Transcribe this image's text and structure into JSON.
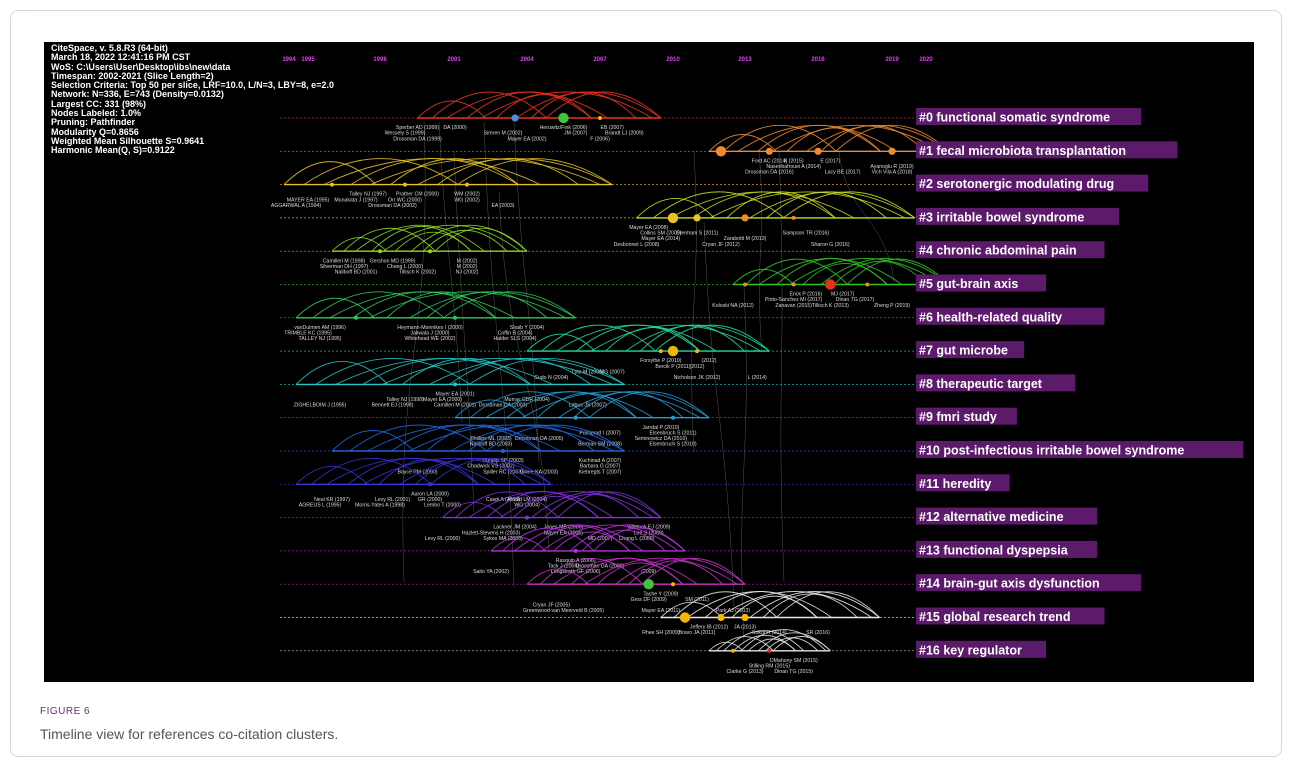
{
  "info_lines": [
    "CiteSpace, v. 5.8.R3 (64-bit)",
    "March 18, 2022 12:41:16 PM CST",
    "WoS: C:\\Users\\User\\Desktop\\ibs\\new\\data",
    "Timespan: 2002-2021 (Slice Length=2)",
    "Selection Criteria: Top 50 per slice, LRF=10.0, L/N=3, LBY=8, e=2.0",
    "Network: N=336, E=743 (Density=0.0132)",
    "Largest CC: 331 (98%)",
    "Nodes Labeled: 1.0%",
    "Pruning: Pathfinder",
    "Modularity Q=0.8656",
    "Weighted Mean Silhouette S=0.9641",
    "Harmonic Mean(Q, S)=0.9122"
  ],
  "years": [
    {
      "label": "1994",
      "year": 1994
    },
    {
      "label": "1995",
      "year": 1995
    },
    {
      "label": "1998",
      "year": 1998
    },
    {
      "label": "2001",
      "year": 2001
    },
    {
      "label": "2004",
      "year": 2004
    },
    {
      "label": "2007",
      "year": 2007
    },
    {
      "label": "2010",
      "year": 2010
    },
    {
      "label": "2013",
      "year": 2013
    },
    {
      "label": "2016",
      "year": 2016
    },
    {
      "label": "2019",
      "year": 2019
    },
    {
      "label": "2020",
      "year": 2020
    }
  ],
  "clusters": [
    {
      "label": "#0 functional somatic syndrome",
      "color": "#e8321e",
      "span": [
        1999.5,
        2009.5
      ],
      "nodes": [
        [
          2003.5,
          "#4a90e2",
          1
        ],
        [
          2005.5,
          "#3ec43e",
          2
        ],
        [
          2007,
          "#f2b705",
          0
        ]
      ],
      "refs": [
        [
          "Sperber AD (1999)",
          1999.5,
          1
        ],
        [
          "DA (2000)",
          2001,
          1
        ],
        [
          "Heruwitz/Fink (2006)",
          2005.5,
          1
        ],
        [
          "EB (2007)",
          2007.5,
          1
        ],
        [
          "Wessely S (1999)",
          1999,
          2
        ],
        [
          "Simren M (2002)",
          2003,
          2
        ],
        [
          "JM (2007)",
          2006,
          2
        ],
        [
          "Brandt LJ (2009)",
          2008,
          2
        ],
        [
          "Drossman DA (1999)",
          1999.5,
          3
        ],
        [
          "Mayer EA (2002)",
          2004,
          3
        ],
        [
          "F (2006)",
          2007,
          3
        ]
      ]
    },
    {
      "label": "#1 fecal microbiota transplantation",
      "color": "#f08a2c",
      "span": [
        2011.5,
        2021.5
      ],
      "nodes": [
        [
          2012,
          "#f08a2c",
          2
        ],
        [
          2014,
          "#f08a2c",
          1
        ],
        [
          2016,
          "#f08a2c",
          1
        ],
        [
          2019,
          "#f08a2c",
          1
        ]
      ],
      "refs": [
        [
          "Ford AC (2014)",
          2014,
          1
        ],
        [
          "K (2015)",
          2015,
          1
        ],
        [
          "E (2017)",
          2016.5,
          1
        ],
        [
          "Naseribafrouei A (2014)",
          2015,
          2
        ],
        [
          "Ayanoglu R (2019)",
          2019,
          2
        ],
        [
          "Drossman DA (2016)",
          2014,
          3
        ],
        [
          "Lacy BE (2017)",
          2017,
          3
        ],
        [
          "Vich Vila A (2018)",
          2019,
          3
        ]
      ]
    },
    {
      "label": "#2 serotonergic modulating drug",
      "color": "#e8c21e",
      "span": [
        1994,
        2007.5
      ],
      "nodes": [
        [
          1996,
          "#e8c21e",
          0
        ],
        [
          1999,
          "#e8c21e",
          0
        ],
        [
          2001.5,
          "#e8c21e",
          0
        ]
      ],
      "refs": [
        [
          "Talley NJ (1997)",
          1997.5,
          1
        ],
        [
          "Prather CM (2000)",
          1999.5,
          1
        ],
        [
          "WM (2002)",
          2001.5,
          1
        ],
        [
          "MAYER EA (1995)",
          1995,
          2
        ],
        [
          "Munakata J (1997)",
          1997,
          2
        ],
        [
          "Orr WC (2000)",
          1999,
          2
        ],
        [
          "WG (2002)",
          2001.5,
          2
        ],
        [
          "AGGARWAL A (1994)",
          1994.5,
          3
        ],
        [
          "Drossman DA (2002)",
          1998.5,
          3
        ],
        [
          "EA (2003)",
          2003,
          3
        ]
      ]
    },
    {
      "label": "#3 irritable bowel syndrome",
      "color": "#c8dc1e",
      "span": [
        2008.5,
        2020
      ],
      "nodes": [
        [
          2010,
          "#e8c21e",
          2
        ],
        [
          2011,
          "#e8c21e",
          1
        ],
        [
          2013,
          "#f08a2c",
          1
        ],
        [
          2015,
          "#f08a2c",
          0
        ]
      ],
      "refs": [
        [
          "Mayer EA (2008)",
          2009,
          1
        ],
        [
          "Collins SM (2009)",
          2009.5,
          2
        ],
        [
          "Grenham S (2011)",
          2011,
          2
        ],
        [
          "Sampson TR (2016)",
          2015.5,
          2
        ],
        [
          "Mayer EA (2014)",
          2009.5,
          3
        ],
        [
          "Zarabotti M (2013)",
          2013,
          3
        ],
        [
          "Desbonnet L (2008)",
          2008.5,
          4
        ],
        [
          "Cryan JF (2012)",
          2012,
          4
        ],
        [
          "Sharon G (2016)",
          2016.5,
          4
        ]
      ]
    },
    {
      "label": "#4 chronic abdominal pain",
      "color": "#8cdc1e",
      "span": [
        1996,
        2004
      ],
      "nodes": [
        [
          1998,
          "#8cdc1e",
          0
        ],
        [
          2000,
          "#8cdc1e",
          0
        ]
      ],
      "refs": [
        [
          "Camilleri M (1998)",
          1996.5,
          1
        ],
        [
          "Gershon MD (1999)",
          1998.5,
          1
        ],
        [
          "M (2002)",
          2001.5,
          1
        ],
        [
          "Silverman DH (1997)",
          1996.5,
          2
        ],
        [
          "Chang L (2000)",
          1999,
          2
        ],
        [
          "M (2002)",
          2001.5,
          2
        ],
        [
          "Naliboff BD (2001)",
          1997,
          3
        ],
        [
          "Tillisch K (2002)",
          1999.5,
          3
        ],
        [
          "NJ (2002)",
          2001.5,
          3
        ]
      ]
    },
    {
      "label": "#5 gut-brain axis",
      "color": "#2cc41e",
      "span": [
        2012.5,
        2021.5
      ],
      "nodes": [
        [
          2013,
          "#f08a2c",
          0
        ],
        [
          2015,
          "#f08a2c",
          0
        ],
        [
          2016.5,
          "#e8321e",
          2
        ],
        [
          2018,
          "#f08a2c",
          0
        ]
      ],
      "refs": [
        [
          "Enck P (2016)",
          2015.5,
          1
        ],
        [
          "MJ (2017)",
          2017,
          1
        ],
        [
          "Pinto-Sanchez MI (2017)",
          2015,
          2
        ],
        [
          "Dinan TG (2017)",
          2017.5,
          2
        ],
        [
          "Koloski NA (2012)",
          2012.5,
          3
        ],
        [
          "Zanavan (2015)",
          2015,
          3
        ],
        [
          "Tillisch K (2013)",
          2016.5,
          3
        ],
        [
          "Zheng P (2019)",
          2019,
          3
        ]
      ]
    },
    {
      "label": "#6 health-related quality",
      "color": "#2ccc5a",
      "span": [
        1994.5,
        2006
      ],
      "nodes": [
        [
          1997,
          "#2ccc5a",
          0
        ],
        [
          2001,
          "#2ccc5a",
          0
        ]
      ],
      "refs": [
        [
          "vanDulmen AM (1996)",
          1995.5,
          1
        ],
        [
          "Heymann-Monnikes I (2000)",
          2000,
          1
        ],
        [
          "Shaib Y (2004)",
          2004,
          1
        ],
        [
          "TRIMBLE KC (1995)",
          1995,
          2
        ],
        [
          "Jailwala J (2000)",
          2000,
          2
        ],
        [
          "Coffin B (2004)",
          2003.5,
          2
        ],
        [
          "TALLEY NJ (1995)",
          1995.5,
          3
        ],
        [
          "Whitehead WE (2002)",
          2000,
          3
        ],
        [
          "Halder SLS (2004)",
          2003.5,
          3
        ]
      ]
    },
    {
      "label": "#7 gut microbe",
      "color": "#1edca0",
      "span": [
        2004,
        2014
      ],
      "nodes": [
        [
          2009.5,
          "#f2b705",
          0
        ],
        [
          2010,
          "#f2b705",
          2
        ],
        [
          2011,
          "#f2b705",
          0
        ]
      ],
      "refs": [
        [
          "Forsythe P (2010)",
          2009.5,
          1
        ],
        [
          "(2012)",
          2011.5,
          1
        ],
        [
          "Bercik P (2011)",
          2010,
          2
        ],
        [
          "(2012)",
          2011,
          2
        ],
        [
          "Lyte M (2006)",
          2006.5,
          3
        ],
        [
          "MG (2007)",
          2007.5,
          3
        ],
        [
          "Sudo N (2004)",
          2005,
          4
        ],
        [
          "Nicholson JK (2012)",
          2011,
          4
        ],
        [
          "L (2014)",
          2013.5,
          4
        ]
      ]
    },
    {
      "label": "#8 therapeutic target",
      "color": "#1ec8c8",
      "span": [
        1994.5,
        2008
      ],
      "nodes": [
        [
          2001,
          "#1ec8c8",
          0
        ]
      ],
      "refs": [
        [
          "Mayer EA (2001)",
          2001,
          1
        ],
        [
          "Talley NJ (1998)",
          1999,
          2
        ],
        [
          "Mayer EA (2000)",
          2000.5,
          2
        ],
        [
          "Murray CDR (2004)",
          2004,
          2
        ],
        [
          "ZIGHELBOIM J (1995)",
          1995.5,
          3
        ],
        [
          "Bennett EJ (1998)",
          1998.5,
          3
        ],
        [
          "Camilleri M (2001)",
          2001,
          3
        ],
        [
          "Drossman DA (2003)",
          2003,
          3
        ],
        [
          "Labus JS (2007)",
          2006.5,
          3
        ]
      ]
    },
    {
      "label": "#9 fmri study",
      "color": "#1ea0dc",
      "span": [
        2001,
        2011.5
      ],
      "nodes": [
        [
          2006,
          "#1ea0dc",
          0
        ],
        [
          2010,
          "#1ea0dc",
          0
        ]
      ],
      "refs": [
        [
          "Jarrdal P (2010)",
          2009.5,
          1
        ],
        [
          "Posserud I (2007)",
          2007,
          2
        ],
        [
          "Elsenbruch S (2011)",
          2010,
          2
        ],
        [
          "Phillips ML (2003)",
          2002.5,
          3
        ],
        [
          "Drossman DA (2005)",
          2004.5,
          3
        ],
        [
          "Seminowicz DA (2010)",
          2009.5,
          3
        ],
        [
          "Naliboff BD (2003)",
          2002.5,
          4
        ],
        [
          "Berman SM (2008)",
          2007,
          4
        ],
        [
          "Elsenbruch S (2010)",
          2010,
          4
        ]
      ]
    },
    {
      "label": "#10 post-infectious irritable bowel syndrome",
      "color": "#1e64dc",
      "span": [
        1996,
        2008
      ],
      "nodes": [
        [
          2003,
          "#1e64dc",
          0
        ]
      ],
      "refs": [
        [
          "Dunlop SP (2003)",
          2003,
          1
        ],
        [
          "Kuchinad A (2007)",
          2007,
          1
        ],
        [
          "Chadwick VS (2002)",
          2002.5,
          2
        ],
        [
          "Barbara G (2007)",
          2007,
          2
        ],
        [
          "Boyce PM (2000)",
          1999.5,
          3
        ],
        [
          "Spiller RC (2003)",
          2003,
          3
        ],
        [
          "Gwee KA (2003)",
          2004.5,
          3
        ],
        [
          "Kiebregts T (2007)",
          2007,
          3
        ]
      ]
    },
    {
      "label": "#11 heredity",
      "color": "#3c32dc",
      "span": [
        1994.5,
        2005
      ],
      "nodes": [
        [
          2000,
          "#3c32dc",
          0
        ]
      ],
      "refs": [
        [
          "Aaron LA (2000)",
          2000,
          1
        ],
        [
          "Caspi A (2003)",
          2003,
          2
        ],
        [
          "Arnold LM (2004)",
          2004,
          2
        ],
        [
          "Neal KR (1997)",
          1996,
          2
        ],
        [
          "Levy RL (2001)",
          1998.5,
          2
        ],
        [
          "GR (2000)",
          2000,
          2
        ],
        [
          "AGREUS L (1995)",
          1995.5,
          3
        ],
        [
          "Morris-Yates A (1998)",
          1998,
          3
        ],
        [
          "Lembo T (2000)",
          2000.5,
          3
        ],
        [
          "WG (2004)",
          2004,
          3
        ]
      ]
    },
    {
      "label": "#12 alternative medicine",
      "color": "#8232dc",
      "span": [
        2000.5,
        2009.5
      ],
      "nodes": [
        [
          2004,
          "#8232dc",
          0
        ]
      ],
      "refs": [
        [
          "Lackner JM (2004)",
          2003.5,
          1
        ],
        [
          "Jones MP (2006)",
          2005.5,
          1
        ],
        [
          "Videlock EJ (2009)",
          2009,
          1
        ],
        [
          "Hazlett-Stevens H (2003)",
          2002.5,
          2
        ],
        [
          "Mayer EA (2006)",
          2005.5,
          2
        ],
        [
          "Lee S (2009)",
          2009,
          2
        ],
        [
          "Levy RL (2000)",
          2000.5,
          3
        ],
        [
          "Sykes MA (2003)",
          2003,
          3
        ],
        [
          "MD (2007)",
          2007,
          3
        ],
        [
          "Chang L (2009)",
          2008.5,
          3
        ]
      ]
    },
    {
      "label": "#13 functional dyspepsia",
      "color": "#b432dc",
      "span": [
        2002.5,
        2010.5
      ],
      "nodes": [
        [
          2006,
          "#b432dc",
          0
        ]
      ],
      "refs": [
        [
          "Rasquin A (2006)",
          2006,
          1
        ],
        [
          "Drossman DA (2006)",
          2007,
          2
        ],
        [
          "Tack J (2006)",
          2005.5,
          2
        ],
        [
          "Saito YA (2002)",
          2002.5,
          3
        ],
        [
          "Longstreth GF (2006)",
          2006,
          3
        ],
        [
          "(2009)",
          2009,
          3
        ]
      ]
    },
    {
      "label": "#14 brain-gut axis dysfunction",
      "color": "#c832c8",
      "span": [
        2004,
        2013
      ],
      "nodes": [
        [
          2009,
          "#3ec43e",
          2
        ],
        [
          2010,
          "#f2b705",
          0
        ]
      ],
      "refs": [
        [
          "Tache Y (2009)",
          2009.5,
          1
        ],
        [
          "Gros DF (2009)",
          2009,
          2
        ],
        [
          "SM (2011)",
          2011,
          2
        ],
        [
          "Cryan JF (2005)",
          2005,
          3
        ],
        [
          "Greenwood-van Meerveld B (2005)",
          2005.5,
          4
        ],
        [
          "Mayer EA (2011)",
          2009.5,
          4
        ],
        [
          "Park AJ (2013)",
          2012.5,
          4
        ]
      ]
    },
    {
      "label": "#15 global research trend",
      "color": "#e6e6e6",
      "span": [
        2009.5,
        2018.5
      ],
      "nodes": [
        [
          2010.5,
          "#f2b705",
          2
        ],
        [
          2012,
          "#f2b705",
          1
        ],
        [
          2013,
          "#f2b705",
          1
        ]
      ],
      "refs": [
        [
          "Jeffery IB (2012)",
          2011.5,
          1
        ],
        [
          "JA (2013)",
          2013,
          1
        ],
        [
          "Rhee SH (2009)",
          2009.5,
          2
        ],
        [
          "Bravo JA (2011)",
          2011,
          2
        ],
        [
          "Sokol H (2014)",
          2014,
          2
        ],
        [
          "SR (2016)",
          2016,
          2
        ]
      ]
    },
    {
      "label": "#16 key regulator",
      "color": "#e6e6e6",
      "span": [
        2011.5,
        2016.5
      ],
      "nodes": [
        [
          2012.5,
          "#f2b705",
          0
        ],
        [
          2014,
          "#e8321e",
          0
        ]
      ],
      "refs": [
        [
          "OMahony SM (2015)",
          2015,
          1
        ],
        [
          "Stilling RM (2015)",
          2014,
          2
        ],
        [
          "Clarke G (2013)",
          2013,
          3
        ],
        [
          "Dinan TG (2015)",
          2015,
          3
        ]
      ]
    }
  ],
  "caption": {
    "number": "FIGURE 6",
    "text": "Timeline view for references co-citation clusters."
  }
}
